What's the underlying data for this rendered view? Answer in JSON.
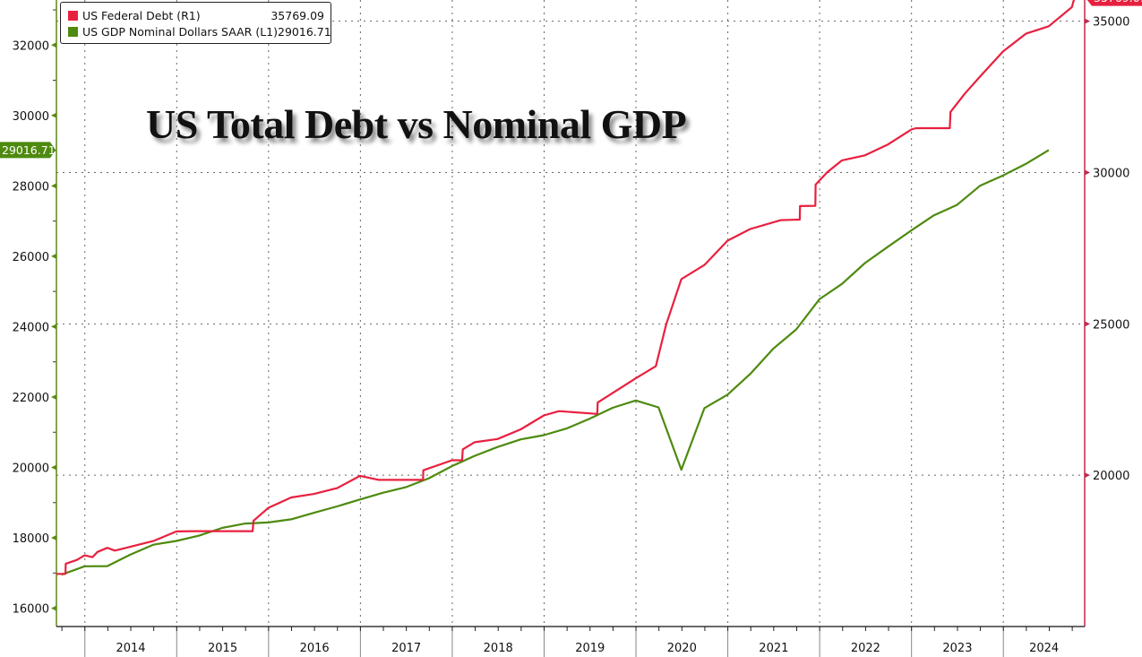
{
  "chart_data": {
    "type": "line",
    "title": "US Total Debt vs Nominal GDP",
    "colors": {
      "debt": "#e8203f",
      "gdp": "#4e8a0f",
      "left_axis": "#5a8a12",
      "right_axis": "#c2284a"
    },
    "legend": {
      "placement": "top-left",
      "entries": [
        {
          "name": "US Federal Debt (R1)",
          "value": "35769.09"
        },
        {
          "name": "US GDP Nominal Dollars SAAR (L1)",
          "value": "29016.71"
        }
      ]
    },
    "x_axis": {
      "ticks": [
        "2014",
        "2015",
        "2016",
        "2017",
        "2018",
        "2019",
        "2020",
        "2021",
        "2022",
        "2023",
        "2024"
      ],
      "range": [
        "2013-09-10",
        "2024-11-20"
      ]
    },
    "left_axis": {
      "ticks": [
        "16000",
        "18000",
        "20000",
        "22000",
        "24000",
        "26000",
        "28000",
        "30000",
        "32000"
      ],
      "range": [
        15480,
        33280
      ],
      "last_value_badge": "29016.71"
    },
    "right_axis": {
      "ticks": [
        "20000",
        "25000",
        "30000",
        "35000"
      ],
      "range": [
        15000,
        35700
      ],
      "last_value_badge": "35769.09"
    },
    "grid": true,
    "series": [
      {
        "name": "US Federal Debt (R1)",
        "axis": "right",
        "points": [
          [
            "2013-09-10",
            16738
          ],
          [
            "2013-10-16",
            16738
          ],
          [
            "2013-10-17",
            17076
          ],
          [
            "2013-11-30",
            17200
          ],
          [
            "2013-12-31",
            17352
          ],
          [
            "2014-01-31",
            17293
          ],
          [
            "2014-02-20",
            17463
          ],
          [
            "2014-03-31",
            17601
          ],
          [
            "2014-04-30",
            17508
          ],
          [
            "2014-06-30",
            17632
          ],
          [
            "2014-09-30",
            17824
          ],
          [
            "2014-12-31",
            18141
          ],
          [
            "2015-03-15",
            18152
          ],
          [
            "2015-10-30",
            18152
          ],
          [
            "2015-11-02",
            18492
          ],
          [
            "2015-12-31",
            18922
          ],
          [
            "2016-03-31",
            19264
          ],
          [
            "2016-06-30",
            19381
          ],
          [
            "2016-09-30",
            19573
          ],
          [
            "2016-12-31",
            19977
          ],
          [
            "2017-03-15",
            19846
          ],
          [
            "2017-09-07",
            19846
          ],
          [
            "2017-09-08",
            20162
          ],
          [
            "2017-12-31",
            20493
          ],
          [
            "2018-02-09",
            20494
          ],
          [
            "2018-02-12",
            20856
          ],
          [
            "2018-03-31",
            21090
          ],
          [
            "2018-06-30",
            21195
          ],
          [
            "2018-09-30",
            21516
          ],
          [
            "2018-12-31",
            21974
          ],
          [
            "2019-03-01",
            22115
          ],
          [
            "2019-07-31",
            22023
          ],
          [
            "2019-08-02",
            22400
          ],
          [
            "2019-12-31",
            23201
          ],
          [
            "2020-03-20",
            23600
          ],
          [
            "2020-04-30",
            24974
          ],
          [
            "2020-06-30",
            26477
          ],
          [
            "2020-09-30",
            26945
          ],
          [
            "2020-12-31",
            27748
          ],
          [
            "2021-03-31",
            28133
          ],
          [
            "2021-07-31",
            28428
          ],
          [
            "2021-10-14",
            28446
          ],
          [
            "2021-10-15",
            28893
          ],
          [
            "2021-12-15",
            28900
          ],
          [
            "2021-12-16",
            29600
          ],
          [
            "2022-01-31",
            30010
          ],
          [
            "2022-03-31",
            30401
          ],
          [
            "2022-06-30",
            30568
          ],
          [
            "2022-09-30",
            30929
          ],
          [
            "2022-12-31",
            31420
          ],
          [
            "2023-01-19",
            31465
          ],
          [
            "2023-06-02",
            31465
          ],
          [
            "2023-06-05",
            32000
          ],
          [
            "2023-07-31",
            32600
          ],
          [
            "2023-09-30",
            33167
          ],
          [
            "2023-12-31",
            34001
          ],
          [
            "2024-03-31",
            34587
          ],
          [
            "2024-06-30",
            34832
          ],
          [
            "2024-09-30",
            35464
          ],
          [
            "2024-10-10",
            35769.09
          ]
        ]
      },
      {
        "name": "US GDP Nominal Dollars SAAR (L1)",
        "axis": "left",
        "points": [
          [
            "2013-09-30",
            16953
          ],
          [
            "2013-12-31",
            17192
          ],
          [
            "2014-03-31",
            17197
          ],
          [
            "2014-06-30",
            17519
          ],
          [
            "2014-09-30",
            17804
          ],
          [
            "2014-12-31",
            17912
          ],
          [
            "2015-03-31",
            18063
          ],
          [
            "2015-06-30",
            18280
          ],
          [
            "2015-09-30",
            18406
          ],
          [
            "2015-12-31",
            18436
          ],
          [
            "2016-03-31",
            18525
          ],
          [
            "2016-06-30",
            18712
          ],
          [
            "2016-09-30",
            18892
          ],
          [
            "2016-12-31",
            19090
          ],
          [
            "2017-03-31",
            19280
          ],
          [
            "2017-06-30",
            19438
          ],
          [
            "2017-09-30",
            19692
          ],
          [
            "2017-12-31",
            20038
          ],
          [
            "2018-03-31",
            20328
          ],
          [
            "2018-06-30",
            20580
          ],
          [
            "2018-09-30",
            20798
          ],
          [
            "2018-12-31",
            20918
          ],
          [
            "2019-03-31",
            21105
          ],
          [
            "2019-06-30",
            21384
          ],
          [
            "2019-09-30",
            21694
          ],
          [
            "2019-12-31",
            21902
          ],
          [
            "2020-03-31",
            21707
          ],
          [
            "2020-06-30",
            19935
          ],
          [
            "2020-09-30",
            21685
          ],
          [
            "2020-12-31",
            22069
          ],
          [
            "2021-03-31",
            22657
          ],
          [
            "2021-06-30",
            23368
          ],
          [
            "2021-09-30",
            23922
          ],
          [
            "2021-12-31",
            24777
          ],
          [
            "2022-03-31",
            25215
          ],
          [
            "2022-06-30",
            25805
          ],
          [
            "2022-09-30",
            26272
          ],
          [
            "2022-12-31",
            26734
          ],
          [
            "2023-03-31",
            27164
          ],
          [
            "2023-06-30",
            27454
          ],
          [
            "2023-09-30",
            28000
          ],
          [
            "2023-12-31",
            28297
          ],
          [
            "2024-03-31",
            28624
          ],
          [
            "2024-06-30",
            29016.71
          ]
        ]
      }
    ]
  }
}
